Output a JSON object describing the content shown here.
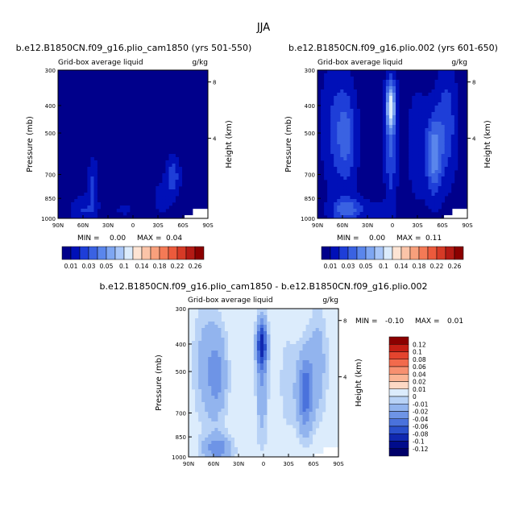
{
  "figure": {
    "title": "JJA"
  },
  "chart_data": [
    {
      "type": "heatmap",
      "title": "b.e12.B1850CN.f09_g16.plio_cam1850 (yrs 501-550)",
      "subtitle": "Grid-box average liquid",
      "units": "g/kg",
      "ylabel": "Pressure (mb)",
      "ylabel_right": "Height (km)",
      "x_ticks": [
        "90N",
        "60N",
        "30N",
        "0",
        "30S",
        "60S",
        "90S"
      ],
      "y_ticks": [
        300,
        400,
        500,
        700,
        850,
        1000
      ],
      "y_ticks_right": [
        8,
        4
      ],
      "xlim": [
        90,
        -90
      ],
      "ylim": [
        1000,
        300
      ],
      "stats": {
        "min_label": "MIN =",
        "min": "0.00",
        "max_label": "MAX =",
        "max": "0.04"
      },
      "contour_levels": [
        0.01,
        0.03,
        0.05
      ],
      "blobs": [
        {
          "lat": 48,
          "p": 850,
          "slat": 6,
          "sp": 120,
          "amp": 0.035
        },
        {
          "lat": 60,
          "p": 960,
          "slat": 14,
          "sp": 60,
          "amp": 0.03
        },
        {
          "lat": 10,
          "p": 960,
          "slat": 18,
          "sp": 45,
          "amp": 0.012
        },
        {
          "lat": -48,
          "p": 800,
          "slat": 8,
          "sp": 90,
          "amp": 0.045
        },
        {
          "lat": -35,
          "p": 900,
          "slat": 10,
          "sp": 80,
          "amp": 0.02
        }
      ]
    },
    {
      "type": "heatmap",
      "title": "b.e12.B1850CN.f09_g16.plio.002 (yrs 601-650)",
      "subtitle": "Grid-box average liquid",
      "units": "g/kg",
      "ylabel": "Pressure (mb)",
      "ylabel_right": "Height (km)",
      "x_ticks": [
        "90N",
        "60N",
        "30N",
        "0",
        "30S",
        "60S",
        "90S"
      ],
      "y_ticks": [
        300,
        400,
        500,
        700,
        850,
        1000
      ],
      "y_ticks_right": [
        8,
        4
      ],
      "xlim": [
        90,
        -90
      ],
      "ylim": [
        1000,
        300
      ],
      "stats": {
        "min_label": "MIN =",
        "min": "0.00",
        "max_label": "MAX =",
        "max": "0.11"
      },
      "contour_levels": [
        0.01,
        0.03,
        0.05,
        0.07,
        0.09
      ],
      "blobs": [
        {
          "lat": 2,
          "p": 470,
          "slat": 6,
          "sp": 110,
          "amp": 0.11
        },
        {
          "lat": 2,
          "p": 660,
          "slat": 7,
          "sp": 280,
          "amp": 0.05
        },
        {
          "lat": 55,
          "p": 620,
          "slat": 12,
          "sp": 220,
          "amp": 0.05
        },
        {
          "lat": 70,
          "p": 560,
          "slat": 16,
          "sp": 300,
          "amp": 0.03
        },
        {
          "lat": -50,
          "p": 700,
          "slat": 9,
          "sp": 180,
          "amp": 0.08
        },
        {
          "lat": -65,
          "p": 560,
          "slat": 12,
          "sp": 260,
          "amp": 0.045
        },
        {
          "lat": -30,
          "p": 650,
          "slat": 14,
          "sp": 300,
          "amp": 0.02
        },
        {
          "lat": 55,
          "p": 960,
          "slat": 18,
          "sp": 60,
          "amp": 0.06
        },
        {
          "lat": 20,
          "p": 960,
          "slat": 20,
          "sp": 45,
          "amp": 0.02
        }
      ]
    },
    {
      "type": "heatmap",
      "title": "b.e12.B1850CN.f09_g16.plio_cam1850 - b.e12.B1850CN.f09_g16.plio.002",
      "subtitle": "Grid-box average liquid",
      "units": "g/kg",
      "ylabel": "Pressure (mb)",
      "ylabel_right": "Height (km)",
      "x_ticks": [
        "90N",
        "60N",
        "30N",
        "0",
        "30S",
        "60S",
        "90S"
      ],
      "y_ticks": [
        300,
        400,
        500,
        700,
        850,
        1000
      ],
      "y_ticks_right": [
        8,
        4
      ],
      "xlim": [
        90,
        -90
      ],
      "ylim": [
        1000,
        300
      ],
      "stats": {
        "min_label": "MIN =",
        "min": "-0.10",
        "max_label": "MAX =",
        "max": "0.01"
      },
      "contour_levels": [
        -0.01,
        -0.02,
        -0.04,
        -0.06
      ],
      "blobs": [
        {
          "lat": 2,
          "p": 470,
          "slat": 6,
          "sp": 110,
          "amp": -0.1
        },
        {
          "lat": 2,
          "p": 660,
          "slat": 7,
          "sp": 280,
          "amp": -0.035
        },
        {
          "lat": 55,
          "p": 620,
          "slat": 12,
          "sp": 220,
          "amp": -0.04
        },
        {
          "lat": 70,
          "p": 560,
          "slat": 16,
          "sp": 300,
          "amp": -0.025
        },
        {
          "lat": -50,
          "p": 700,
          "slat": 9,
          "sp": 180,
          "amp": -0.07
        },
        {
          "lat": -65,
          "p": 560,
          "slat": 12,
          "sp": 260,
          "amp": -0.03
        },
        {
          "lat": -30,
          "p": 650,
          "slat": 14,
          "sp": 300,
          "amp": -0.015
        },
        {
          "lat": 55,
          "p": 960,
          "slat": 18,
          "sp": 60,
          "amp": -0.05
        }
      ],
      "positive_patches": [
        {
          "lat": 52,
          "p": 800,
          "slat": 5,
          "sp": 30,
          "amp": 0.01
        },
        {
          "lat": -25,
          "p": 880,
          "slat": 8,
          "sp": 20,
          "amp": 0.01
        },
        {
          "lat": 35,
          "p": 940,
          "slat": 4,
          "sp": 15,
          "amp": 0.01
        }
      ]
    }
  ],
  "colorbar_abs": {
    "labels": [
      "0.01",
      "0.03",
      "0.05",
      "0.1",
      "0.14",
      "0.18",
      "0.22",
      "0.26"
    ],
    "colors": [
      "#00008b",
      "#0010b8",
      "#1e3ed8",
      "#3a62e2",
      "#5a86ec",
      "#7ea6f2",
      "#a8c6f8",
      "#dcecfc",
      "#fde4d4",
      "#fbc4a8",
      "#f8a07c",
      "#f47a56",
      "#ec5a3c",
      "#d63a26",
      "#b41a14",
      "#8b0000"
    ]
  },
  "colorbar_diff": {
    "labels": [
      "0.12",
      "0.1",
      "0.08",
      "0.06",
      "0.04",
      "0.02",
      "0.01",
      "0",
      "-0.01",
      "-0.02",
      "-0.04",
      "-0.06",
      "-0.08",
      "-0.1",
      "-0.12"
    ],
    "colors": [
      "#8b0000",
      "#c41e14",
      "#e4442e",
      "#f26a4c",
      "#f79070",
      "#fbb494",
      "#fdd8c4",
      "#dcecfc",
      "#b8d2f6",
      "#92b4ee",
      "#6e94e6",
      "#4a72dc",
      "#2a50cc",
      "#1028b0",
      "#000c8c",
      "#00006a"
    ]
  }
}
